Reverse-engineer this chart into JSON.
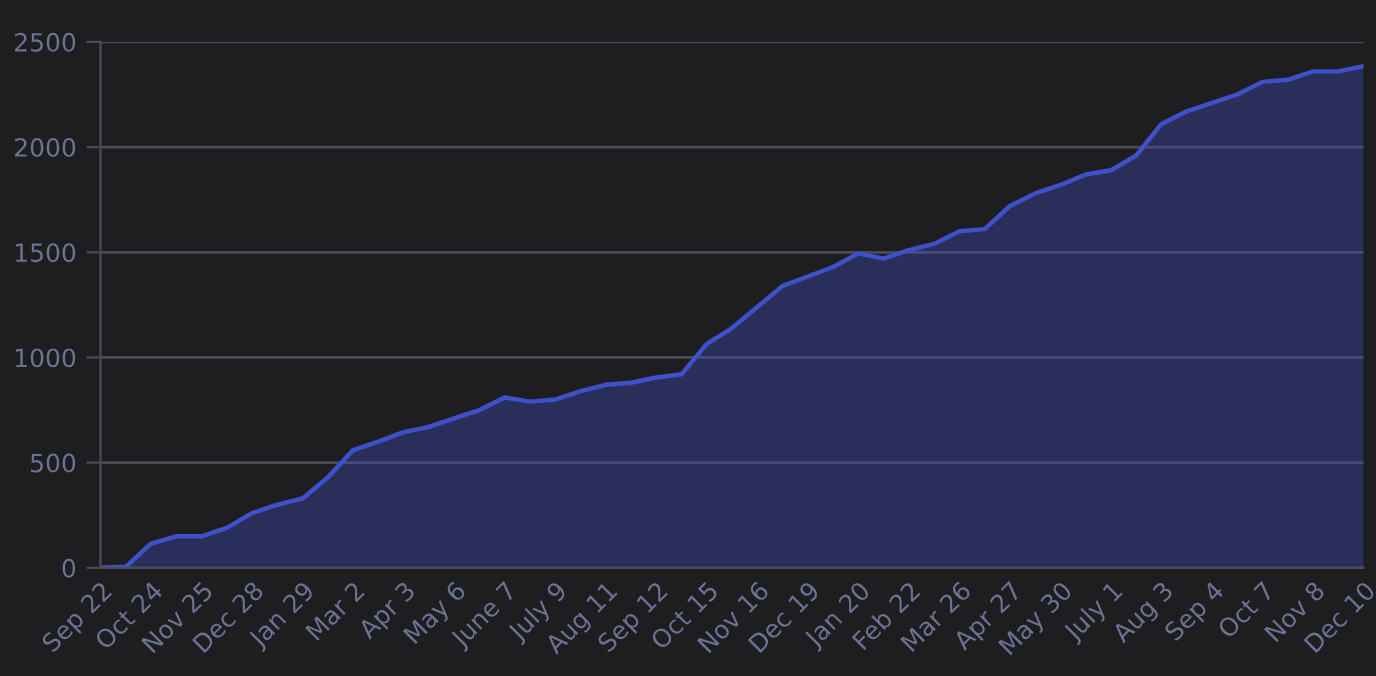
{
  "chart_data": {
    "type": "area",
    "categories": [
      "Sep 22",
      null,
      "Oct 24",
      null,
      "Nov 25",
      null,
      "Dec 28",
      null,
      "Jan 29",
      null,
      "Mar 2",
      null,
      "Apr 3",
      null,
      "May 6",
      null,
      "June 7",
      null,
      "July 9",
      null,
      "Aug 11",
      null,
      "Sep 12",
      null,
      "Oct 15",
      null,
      "Nov 16",
      null,
      "Dec 19",
      null,
      "Jan 20",
      null,
      "Feb 22",
      null,
      "Mar 26",
      null,
      "Apr 27",
      null,
      "May 30",
      null,
      "July 1",
      null,
      "Aug 3",
      null,
      "Sep 4",
      null,
      "Oct 7",
      null,
      "Nov 8",
      null,
      "Dec 10"
    ],
    "series": [
      {
        "color": "#3f51c8",
        "values": [
          0,
          5,
          115,
          150,
          150,
          190,
          260,
          300,
          330,
          430,
          560,
          600,
          645,
          670,
          710,
          750,
          810,
          790,
          800,
          840,
          870,
          880,
          905,
          920,
          1065,
          1140,
          1240,
          1340,
          1385,
          1430,
          1495,
          1470,
          1510,
          1540,
          1600,
          1610,
          1720,
          1780,
          1820,
          1870,
          1890,
          1960,
          2110,
          2170,
          2210,
          2250,
          2310,
          2320,
          2360,
          2360,
          2385
        ]
      }
    ],
    "ylim": [
      0,
      2500
    ],
    "yticks": [
      0,
      500,
      1000,
      1500,
      2000,
      2500
    ],
    "grid": "y",
    "legend": false,
    "marker": "none",
    "line_style": "solid"
  }
}
